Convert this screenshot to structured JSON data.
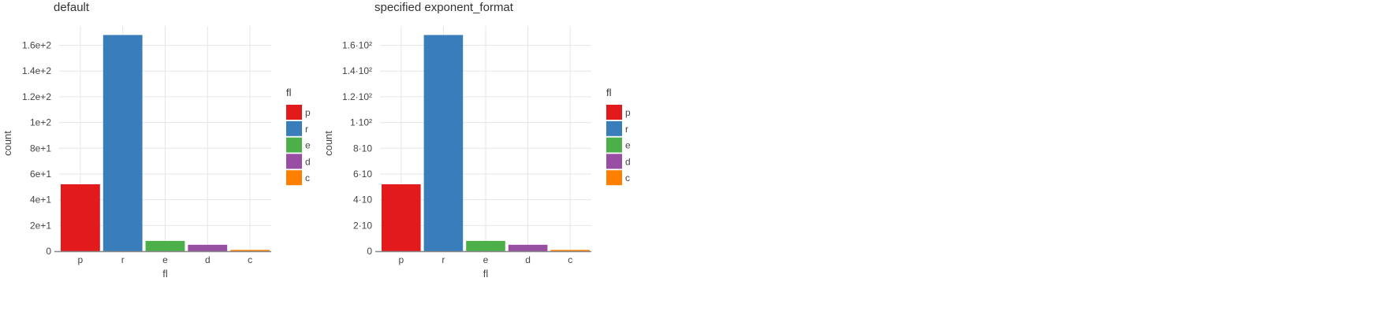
{
  "chart_data": [
    {
      "type": "bar",
      "title": "default",
      "xlabel": "fl",
      "ylabel": "count",
      "categories": [
        "p",
        "r",
        "e",
        "d",
        "c"
      ],
      "values": [
        52,
        168,
        8,
        5,
        1
      ],
      "colors": [
        "#e31a1c",
        "#3a7dbb",
        "#4daf4a",
        "#984ea3",
        "#ff7f00"
      ],
      "ylim": [
        0,
        175
      ],
      "yticks": [
        0,
        20,
        40,
        60,
        80,
        100,
        120,
        140,
        160
      ],
      "ytick_labels": [
        "0",
        "2e+1",
        "4e+1",
        "6e+1",
        "8e+1",
        "1e+2",
        "1.2e+2",
        "1.4e+2",
        "1.6e+2"
      ],
      "grid": true,
      "legend": {
        "title": "fl",
        "placement": "right",
        "entries": [
          "p",
          "r",
          "e",
          "d",
          "c"
        ]
      }
    },
    {
      "type": "bar",
      "title": "specified exponent_format",
      "xlabel": "fl",
      "ylabel": "count",
      "categories": [
        "p",
        "r",
        "e",
        "d",
        "c"
      ],
      "values": [
        52,
        168,
        8,
        5,
        1
      ],
      "colors": [
        "#e31a1c",
        "#3a7dbb",
        "#4daf4a",
        "#984ea3",
        "#ff7f00"
      ],
      "ylim": [
        0,
        175
      ],
      "yticks": [
        0,
        20,
        40,
        60,
        80,
        100,
        120,
        140,
        160
      ],
      "ytick_labels": [
        "0",
        "2·10",
        "4·10",
        "6·10",
        "8·10",
        "1·10²",
        "1.2·10²",
        "1.4·10²",
        "1.6·10²"
      ],
      "grid": true,
      "legend": {
        "title": "fl",
        "placement": "right",
        "entries": [
          "p",
          "r",
          "e",
          "d",
          "c"
        ]
      }
    }
  ]
}
